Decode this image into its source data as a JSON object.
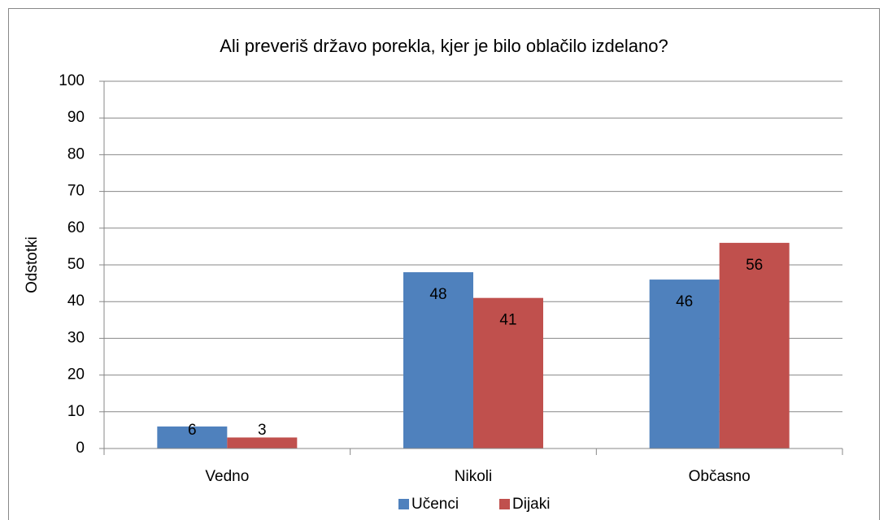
{
  "chart_data": {
    "type": "bar",
    "title": "Ali preveriš državo porekla, kjer je bilo oblačilo izdelano?",
    "y_label": "Odstotki",
    "categories": [
      "Vedno",
      "Nikoli",
      "Občasno"
    ],
    "series": [
      {
        "name": "Učenci",
        "color": "#4f81bd",
        "values": [
          6,
          48,
          46
        ]
      },
      {
        "name": "Dijaki",
        "color": "#c0504d",
        "values": [
          3,
          41,
          56
        ]
      }
    ],
    "ylim": [
      0,
      100
    ],
    "yticks": [
      0,
      10,
      20,
      30,
      40,
      50,
      60,
      70,
      80,
      90,
      100
    ],
    "grid": true,
    "data_labels": true,
    "legend": "bottom"
  }
}
